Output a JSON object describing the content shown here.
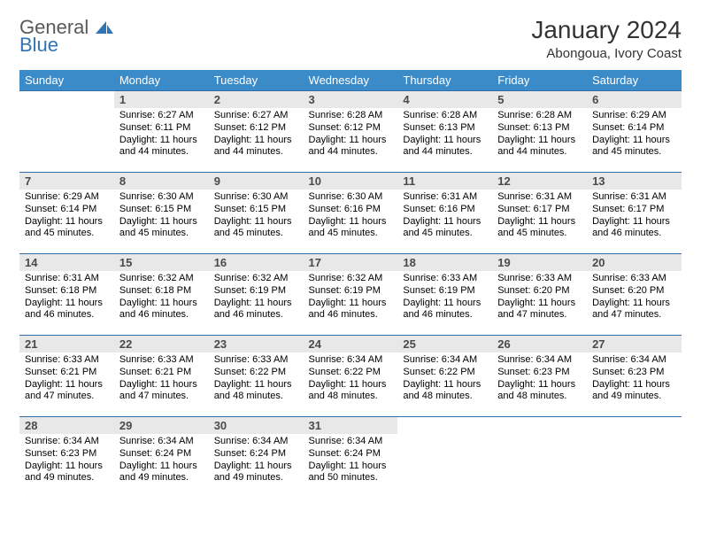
{
  "brand": {
    "word1": "General",
    "word2": "Blue"
  },
  "title": "January 2024",
  "location": "Abongoua, Ivory Coast",
  "colors": {
    "header_bg": "#3b8bc9",
    "header_fg": "#ffffff",
    "daynum_bg": "#e8e8e8",
    "row_border": "#2f6ea8",
    "brand_gray": "#5a5a5a",
    "brand_blue": "#2f75b5"
  },
  "days_of_week": [
    "Sunday",
    "Monday",
    "Tuesday",
    "Wednesday",
    "Thursday",
    "Friday",
    "Saturday"
  ],
  "layout": {
    "first_weekday_index": 1,
    "days_in_month": 31,
    "weeks": 5
  },
  "cells": {
    "1": {
      "sunrise": "Sunrise: 6:27 AM",
      "sunset": "Sunset: 6:11 PM",
      "daylight": "Daylight: 11 hours and 44 minutes."
    },
    "2": {
      "sunrise": "Sunrise: 6:27 AM",
      "sunset": "Sunset: 6:12 PM",
      "daylight": "Daylight: 11 hours and 44 minutes."
    },
    "3": {
      "sunrise": "Sunrise: 6:28 AM",
      "sunset": "Sunset: 6:12 PM",
      "daylight": "Daylight: 11 hours and 44 minutes."
    },
    "4": {
      "sunrise": "Sunrise: 6:28 AM",
      "sunset": "Sunset: 6:13 PM",
      "daylight": "Daylight: 11 hours and 44 minutes."
    },
    "5": {
      "sunrise": "Sunrise: 6:28 AM",
      "sunset": "Sunset: 6:13 PM",
      "daylight": "Daylight: 11 hours and 44 minutes."
    },
    "6": {
      "sunrise": "Sunrise: 6:29 AM",
      "sunset": "Sunset: 6:14 PM",
      "daylight": "Daylight: 11 hours and 45 minutes."
    },
    "7": {
      "sunrise": "Sunrise: 6:29 AM",
      "sunset": "Sunset: 6:14 PM",
      "daylight": "Daylight: 11 hours and 45 minutes."
    },
    "8": {
      "sunrise": "Sunrise: 6:30 AM",
      "sunset": "Sunset: 6:15 PM",
      "daylight": "Daylight: 11 hours and 45 minutes."
    },
    "9": {
      "sunrise": "Sunrise: 6:30 AM",
      "sunset": "Sunset: 6:15 PM",
      "daylight": "Daylight: 11 hours and 45 minutes."
    },
    "10": {
      "sunrise": "Sunrise: 6:30 AM",
      "sunset": "Sunset: 6:16 PM",
      "daylight": "Daylight: 11 hours and 45 minutes."
    },
    "11": {
      "sunrise": "Sunrise: 6:31 AM",
      "sunset": "Sunset: 6:16 PM",
      "daylight": "Daylight: 11 hours and 45 minutes."
    },
    "12": {
      "sunrise": "Sunrise: 6:31 AM",
      "sunset": "Sunset: 6:17 PM",
      "daylight": "Daylight: 11 hours and 45 minutes."
    },
    "13": {
      "sunrise": "Sunrise: 6:31 AM",
      "sunset": "Sunset: 6:17 PM",
      "daylight": "Daylight: 11 hours and 46 minutes."
    },
    "14": {
      "sunrise": "Sunrise: 6:31 AM",
      "sunset": "Sunset: 6:18 PM",
      "daylight": "Daylight: 11 hours and 46 minutes."
    },
    "15": {
      "sunrise": "Sunrise: 6:32 AM",
      "sunset": "Sunset: 6:18 PM",
      "daylight": "Daylight: 11 hours and 46 minutes."
    },
    "16": {
      "sunrise": "Sunrise: 6:32 AM",
      "sunset": "Sunset: 6:19 PM",
      "daylight": "Daylight: 11 hours and 46 minutes."
    },
    "17": {
      "sunrise": "Sunrise: 6:32 AM",
      "sunset": "Sunset: 6:19 PM",
      "daylight": "Daylight: 11 hours and 46 minutes."
    },
    "18": {
      "sunrise": "Sunrise: 6:33 AM",
      "sunset": "Sunset: 6:19 PM",
      "daylight": "Daylight: 11 hours and 46 minutes."
    },
    "19": {
      "sunrise": "Sunrise: 6:33 AM",
      "sunset": "Sunset: 6:20 PM",
      "daylight": "Daylight: 11 hours and 47 minutes."
    },
    "20": {
      "sunrise": "Sunrise: 6:33 AM",
      "sunset": "Sunset: 6:20 PM",
      "daylight": "Daylight: 11 hours and 47 minutes."
    },
    "21": {
      "sunrise": "Sunrise: 6:33 AM",
      "sunset": "Sunset: 6:21 PM",
      "daylight": "Daylight: 11 hours and 47 minutes."
    },
    "22": {
      "sunrise": "Sunrise: 6:33 AM",
      "sunset": "Sunset: 6:21 PM",
      "daylight": "Daylight: 11 hours and 47 minutes."
    },
    "23": {
      "sunrise": "Sunrise: 6:33 AM",
      "sunset": "Sunset: 6:22 PM",
      "daylight": "Daylight: 11 hours and 48 minutes."
    },
    "24": {
      "sunrise": "Sunrise: 6:34 AM",
      "sunset": "Sunset: 6:22 PM",
      "daylight": "Daylight: 11 hours and 48 minutes."
    },
    "25": {
      "sunrise": "Sunrise: 6:34 AM",
      "sunset": "Sunset: 6:22 PM",
      "daylight": "Daylight: 11 hours and 48 minutes."
    },
    "26": {
      "sunrise": "Sunrise: 6:34 AM",
      "sunset": "Sunset: 6:23 PM",
      "daylight": "Daylight: 11 hours and 48 minutes."
    },
    "27": {
      "sunrise": "Sunrise: 6:34 AM",
      "sunset": "Sunset: 6:23 PM",
      "daylight": "Daylight: 11 hours and 49 minutes."
    },
    "28": {
      "sunrise": "Sunrise: 6:34 AM",
      "sunset": "Sunset: 6:23 PM",
      "daylight": "Daylight: 11 hours and 49 minutes."
    },
    "29": {
      "sunrise": "Sunrise: 6:34 AM",
      "sunset": "Sunset: 6:24 PM",
      "daylight": "Daylight: 11 hours and 49 minutes."
    },
    "30": {
      "sunrise": "Sunrise: 6:34 AM",
      "sunset": "Sunset: 6:24 PM",
      "daylight": "Daylight: 11 hours and 49 minutes."
    },
    "31": {
      "sunrise": "Sunrise: 6:34 AM",
      "sunset": "Sunset: 6:24 PM",
      "daylight": "Daylight: 11 hours and 50 minutes."
    }
  }
}
